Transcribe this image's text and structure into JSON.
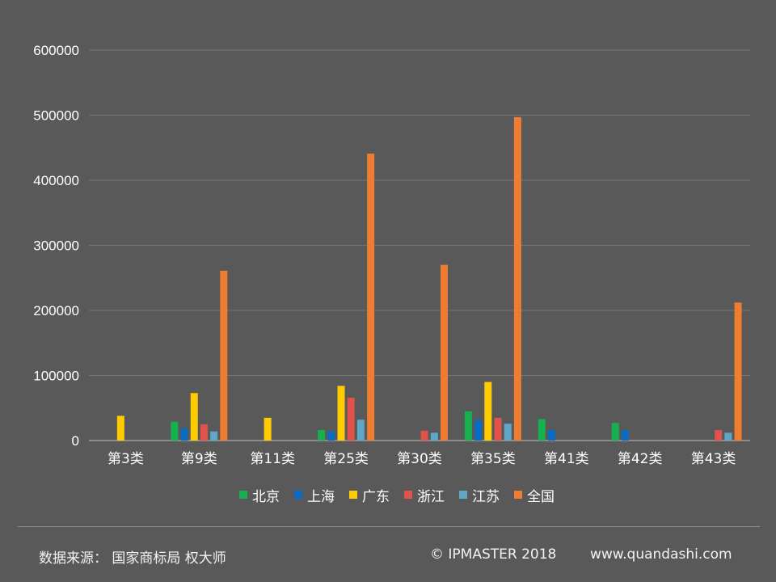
{
  "chart_data": {
    "type": "bar",
    "categories": [
      "第3类",
      "第9类",
      "第11类",
      "第25类",
      "第30类",
      "第35类",
      "第41类",
      "第42类",
      "第43类"
    ],
    "series": [
      {
        "name": "北京",
        "color": "#16b04f",
        "values": [
          0,
          29000,
          0,
          16000,
          0,
          45000,
          33000,
          27000,
          0
        ]
      },
      {
        "name": "上海",
        "color": "#0a6bc2",
        "values": [
          0,
          19000,
          0,
          14000,
          0,
          32000,
          16000,
          16000,
          0
        ]
      },
      {
        "name": "广东",
        "color": "#ffcc00",
        "values": [
          38000,
          73000,
          35000,
          84000,
          0,
          90000,
          0,
          0,
          0
        ]
      },
      {
        "name": "浙江",
        "color": "#e0524a",
        "values": [
          0,
          25000,
          0,
          66000,
          15000,
          35000,
          0,
          0,
          16000
        ]
      },
      {
        "name": "江苏",
        "color": "#5fa6c7",
        "values": [
          0,
          14000,
          0,
          32000,
          12000,
          26000,
          0,
          0,
          12000
        ]
      },
      {
        "name": "全国",
        "color": "#ee7d31",
        "values": [
          0,
          261000,
          0,
          441000,
          270000,
          497000,
          0,
          0,
          212000
        ]
      }
    ],
    "yticks": [
      "0",
      "100000",
      "200000",
      "300000",
      "400000",
      "500000",
      "600000"
    ],
    "ylim": [
      0,
      600000
    ],
    "legend_position": "bottom",
    "grid": true
  },
  "footer": {
    "source": "数据来源： 国家商标局  权大师",
    "copyright": "© IPMASTER  2018",
    "website": "www.quandashi.com"
  }
}
